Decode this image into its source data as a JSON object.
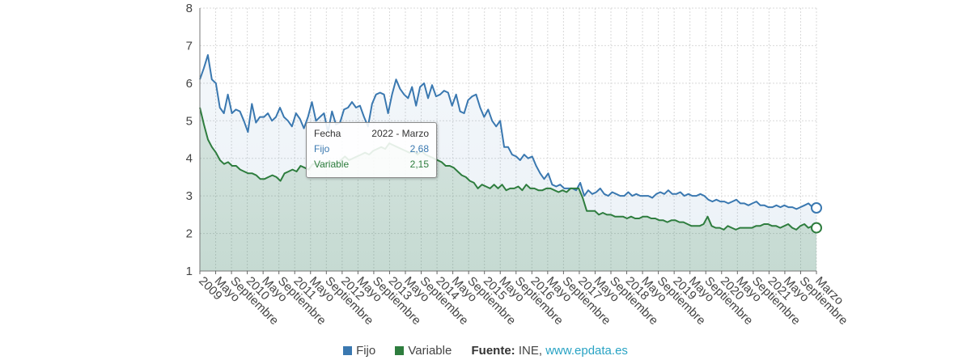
{
  "chart_data": {
    "type": "area",
    "ylim": [
      1,
      8
    ],
    "y_ticks": [
      "1",
      "2",
      "3",
      "4",
      "5",
      "6",
      "7",
      "8"
    ],
    "grid": true,
    "x_start": "2009-01",
    "x_end": "2022-03",
    "x_tick_labels": [
      "2009",
      "Mayo",
      "Septiembre",
      "2010",
      "Mayo",
      "Septiembre",
      "2011",
      "Mayo",
      "Septiembre",
      "2012",
      "Mayo",
      "Septiembre",
      "2013",
      "Mayo",
      "Septiembre",
      "2014",
      "Mayo",
      "Septiembre",
      "2015",
      "Mayo",
      "Septiembre",
      "2016",
      "Mayo",
      "Septiembre",
      "2017",
      "Mayo",
      "Septiembre",
      "2018",
      "Mayo",
      "Septiembre",
      "2019",
      "Mayo",
      "Septiembre",
      "2020",
      "Mayo",
      "Septiembre",
      "2021",
      "Mayo",
      "Septiembre",
      "Marzo"
    ],
    "series": [
      {
        "name": "Fijo",
        "color": "#3a78b0",
        "values": [
          6.1,
          6.4,
          6.75,
          6.1,
          6.0,
          5.35,
          5.2,
          5.7,
          5.2,
          5.3,
          5.25,
          5.0,
          4.7,
          5.45,
          4.95,
          5.1,
          5.1,
          5.2,
          5.0,
          5.1,
          5.35,
          5.1,
          5.0,
          4.85,
          5.2,
          5.05,
          4.8,
          5.1,
          5.5,
          5.0,
          5.1,
          5.2,
          4.7,
          5.25,
          4.9,
          4.95,
          5.3,
          5.35,
          5.5,
          5.35,
          5.4,
          5.1,
          4.85,
          5.45,
          5.7,
          5.75,
          5.7,
          5.2,
          5.7,
          6.1,
          5.85,
          5.7,
          5.6,
          5.9,
          5.4,
          5.9,
          6.0,
          5.6,
          5.95,
          5.65,
          5.7,
          5.8,
          5.75,
          5.4,
          5.7,
          5.25,
          5.2,
          5.55,
          5.65,
          5.7,
          5.35,
          5.1,
          5.3,
          5.0,
          4.85,
          5.0,
          4.3,
          4.3,
          4.1,
          4.05,
          3.95,
          4.1,
          4.0,
          4.05,
          3.8,
          3.6,
          3.45,
          3.6,
          3.3,
          3.25,
          3.3,
          3.2,
          3.2,
          3.2,
          3.15,
          3.35,
          3.0,
          3.15,
          3.05,
          3.1,
          3.2,
          3.05,
          3.0,
          3.1,
          3.05,
          3.0,
          3.0,
          3.1,
          3.0,
          3.05,
          3.0,
          3.0,
          3.0,
          2.95,
          3.05,
          3.1,
          3.05,
          3.15,
          3.05,
          3.05,
          3.1,
          3.0,
          3.05,
          3.0,
          3.0,
          3.05,
          3.0,
          2.9,
          2.85,
          2.9,
          2.85,
          2.85,
          2.8,
          2.85,
          2.9,
          2.8,
          2.8,
          2.75,
          2.8,
          2.85,
          2.75,
          2.75,
          2.7,
          2.7,
          2.75,
          2.7,
          2.75,
          2.7,
          2.7,
          2.65,
          2.7,
          2.75,
          2.8,
          2.7,
          2.68
        ]
      },
      {
        "name": "Variable",
        "color": "#2e7d3e",
        "values": [
          5.35,
          4.9,
          4.5,
          4.3,
          4.15,
          3.95,
          3.85,
          3.9,
          3.8,
          3.8,
          3.7,
          3.65,
          3.6,
          3.6,
          3.55,
          3.45,
          3.45,
          3.5,
          3.55,
          3.5,
          3.4,
          3.6,
          3.65,
          3.7,
          3.65,
          3.8,
          3.75,
          3.7,
          3.85,
          3.85,
          3.8,
          3.85,
          3.9,
          3.9,
          3.85,
          3.95,
          4.05,
          3.95,
          4.0,
          4.05,
          4.1,
          4.15,
          4.1,
          4.2,
          4.25,
          4.3,
          4.25,
          4.4,
          4.35,
          4.3,
          4.25,
          4.2,
          4.15,
          4.2,
          4.1,
          4.2,
          4.1,
          4.05,
          4.0,
          3.95,
          3.9,
          3.8,
          3.8,
          3.75,
          3.65,
          3.55,
          3.5,
          3.4,
          3.35,
          3.2,
          3.3,
          3.25,
          3.2,
          3.3,
          3.2,
          3.3,
          3.15,
          3.2,
          3.2,
          3.25,
          3.15,
          3.3,
          3.2,
          3.2,
          3.15,
          3.15,
          3.2,
          3.2,
          3.15,
          3.1,
          3.15,
          3.1,
          3.2,
          3.2,
          3.2,
          2.95,
          2.6,
          2.6,
          2.6,
          2.5,
          2.55,
          2.5,
          2.5,
          2.45,
          2.45,
          2.45,
          2.4,
          2.45,
          2.4,
          2.4,
          2.45,
          2.45,
          2.4,
          2.4,
          2.35,
          2.35,
          2.3,
          2.35,
          2.35,
          2.3,
          2.3,
          2.25,
          2.2,
          2.2,
          2.2,
          2.25,
          2.45,
          2.2,
          2.15,
          2.15,
          2.1,
          2.2,
          2.15,
          2.1,
          2.15,
          2.15,
          2.15,
          2.15,
          2.2,
          2.2,
          2.25,
          2.25,
          2.2,
          2.2,
          2.15,
          2.2,
          2.25,
          2.15,
          2.1,
          2.2,
          2.25,
          2.15,
          2.2,
          2.15
        ]
      }
    ],
    "tooltip": {
      "date_label": "Fecha",
      "date_value": "2022 - Marzo",
      "fijo_label": "Fijo",
      "fijo_value": "2,68",
      "variable_label": "Variable",
      "variable_value": "2,15"
    },
    "legend": {
      "items": [
        {
          "label": "Fijo",
          "color": "#3a78b0"
        },
        {
          "label": "Variable",
          "color": "#2e7d3e"
        }
      ],
      "source_label": "Fuente:",
      "source_text": " INE, ",
      "source_link": "www.epdata.es"
    }
  }
}
